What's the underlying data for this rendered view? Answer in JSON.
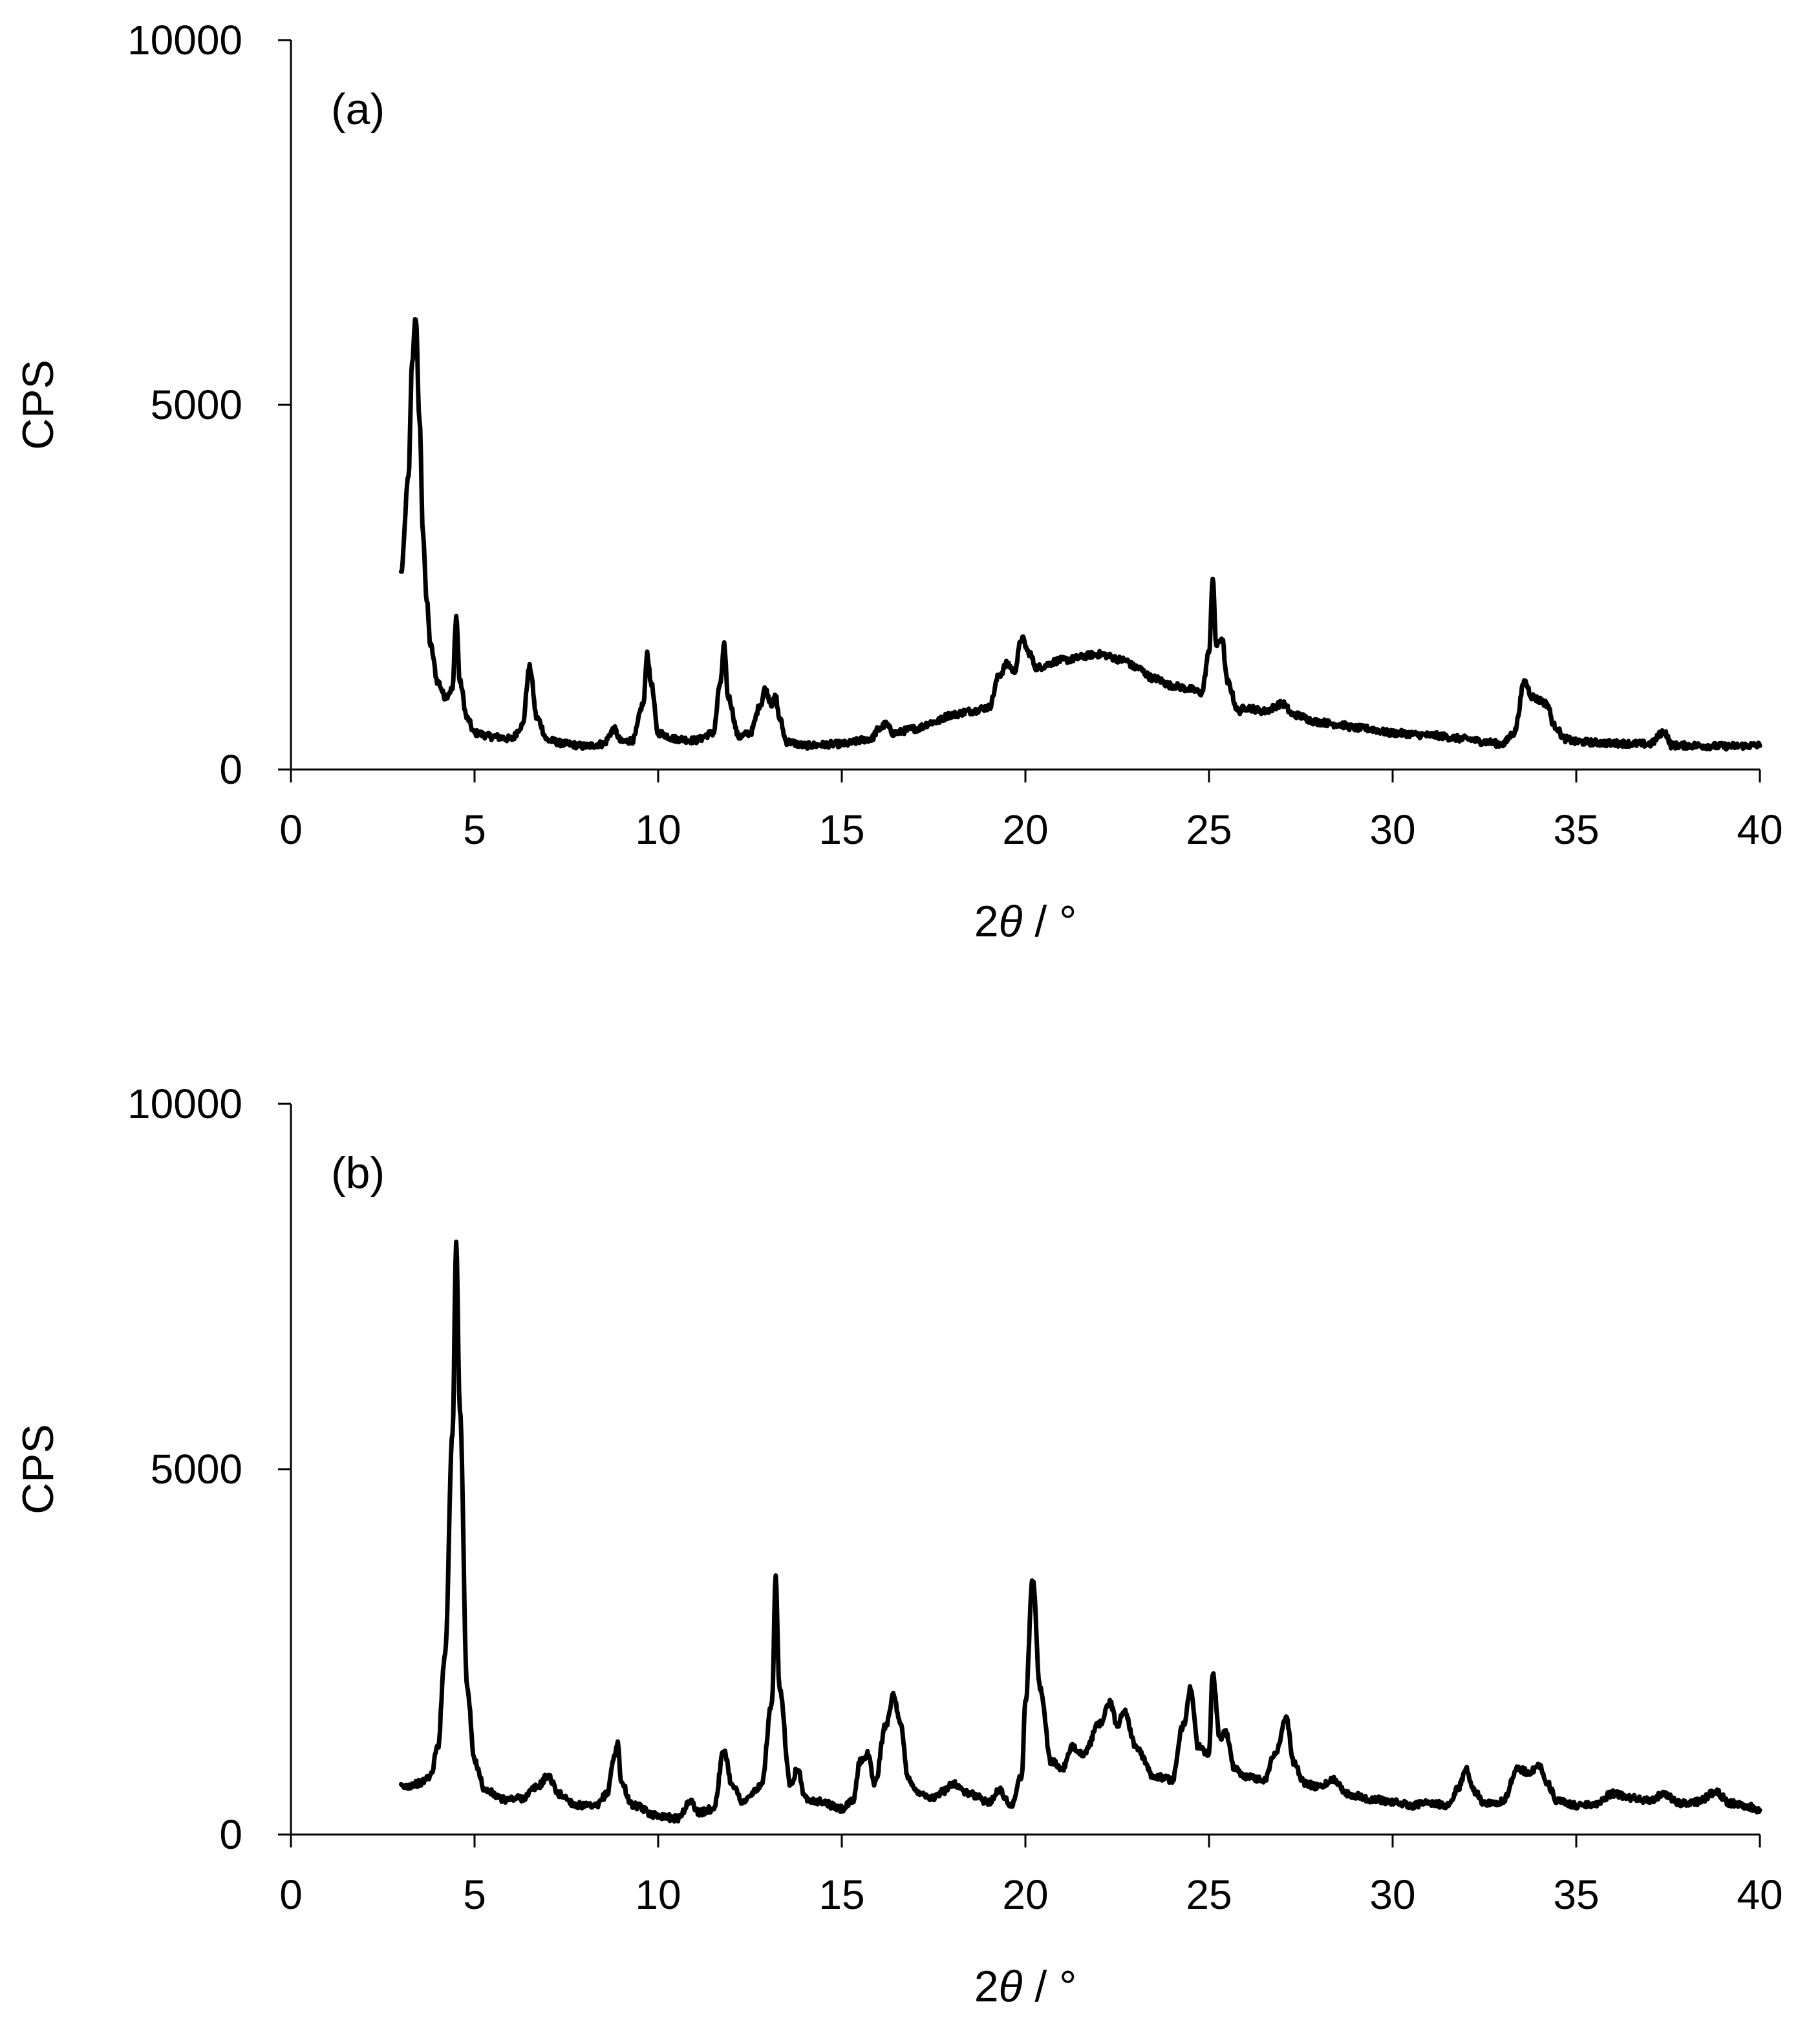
{
  "figure": {
    "line_color": "#000000",
    "background": "#ffffff"
  },
  "chart_data": [
    {
      "type": "line",
      "panel_label": "(a)",
      "xlabel_prefix": "2",
      "xlabel_var": "θ",
      "xlabel_suffix": " / °",
      "ylabel": "CPS",
      "xlim": [
        0,
        40
      ],
      "ylim": [
        0,
        10000
      ],
      "xticks": [
        "0",
        "5",
        "10",
        "15",
        "20",
        "25",
        "30",
        "35",
        "40"
      ],
      "yticks": [
        "0",
        "5000",
        "10000"
      ],
      "grid": false,
      "baseline": [
        [
          3,
          2700
        ],
        [
          3.2,
          4000
        ],
        [
          3.3,
          5600
        ],
        [
          3.4,
          6200
        ],
        [
          3.5,
          4800
        ],
        [
          3.6,
          3200
        ],
        [
          3.7,
          2300
        ],
        [
          3.8,
          1700
        ],
        [
          4.0,
          1200
        ],
        [
          4.2,
          1000
        ],
        [
          4.4,
          1100
        ],
        [
          4.5,
          2100
        ],
        [
          4.6,
          1200
        ],
        [
          4.8,
          700
        ],
        [
          5,
          500
        ],
        [
          5.5,
          450
        ],
        [
          6,
          420
        ],
        [
          6.3,
          600
        ],
        [
          6.5,
          1400
        ],
        [
          6.7,
          700
        ],
        [
          7,
          400
        ],
        [
          7.5,
          350
        ],
        [
          8,
          320
        ],
        [
          8.5,
          350
        ],
        [
          8.8,
          550
        ],
        [
          9,
          380
        ],
        [
          9.3,
          400
        ],
        [
          9.6,
          900
        ],
        [
          9.7,
          1600
        ],
        [
          9.8,
          1200
        ],
        [
          10,
          500
        ],
        [
          10.5,
          420
        ],
        [
          11,
          400
        ],
        [
          11.5,
          500
        ],
        [
          11.7,
          1200
        ],
        [
          11.8,
          1700
        ],
        [
          11.9,
          1000
        ],
        [
          12.2,
          450
        ],
        [
          12.5,
          500
        ],
        [
          12.8,
          900
        ],
        [
          12.9,
          1100
        ],
        [
          13.1,
          900
        ],
        [
          13.2,
          1000
        ],
        [
          13.3,
          700
        ],
        [
          13.5,
          380
        ],
        [
          14,
          330
        ],
        [
          15,
          350
        ],
        [
          15.8,
          420
        ],
        [
          16,
          550
        ],
        [
          16.2,
          620
        ],
        [
          16.4,
          500
        ],
        [
          17,
          560
        ],
        [
          17.5,
          650
        ],
        [
          18,
          750
        ],
        [
          18.5,
          800
        ],
        [
          19,
          850
        ],
        [
          19.3,
          1300
        ],
        [
          19.5,
          1450
        ],
        [
          19.7,
          1350
        ],
        [
          19.9,
          1800
        ],
        [
          20.1,
          1600
        ],
        [
          20.3,
          1400
        ],
        [
          21,
          1500
        ],
        [
          22,
          1580
        ],
        [
          22.7,
          1500
        ],
        [
          23,
          1400
        ],
        [
          23.5,
          1250
        ],
        [
          24,
          1150
        ],
        [
          24.5,
          1100
        ],
        [
          24.8,
          1050
        ],
        [
          25,
          1600
        ],
        [
          25.1,
          2600
        ],
        [
          25.2,
          1700
        ],
        [
          25.35,
          1800
        ],
        [
          25.5,
          1200
        ],
        [
          25.8,
          800
        ],
        [
          26,
          850
        ],
        [
          26.5,
          800
        ],
        [
          27,
          900
        ],
        [
          27.3,
          750
        ],
        [
          28,
          650
        ],
        [
          28.5,
          620
        ],
        [
          29,
          570
        ],
        [
          29.3,
          560
        ],
        [
          30,
          500
        ],
        [
          31,
          470
        ],
        [
          32,
          420
        ],
        [
          32.5,
          380
        ],
        [
          33,
          350
        ],
        [
          33.3,
          500
        ],
        [
          33.6,
          1200
        ],
        [
          33.8,
          1000
        ],
        [
          34,
          950
        ],
        [
          34.2,
          900
        ],
        [
          34.4,
          600
        ],
        [
          34.7,
          420
        ],
        [
          35,
          380
        ],
        [
          36,
          360
        ],
        [
          37,
          350
        ],
        [
          37.4,
          520
        ],
        [
          37.6,
          330
        ],
        [
          38,
          330
        ],
        [
          39,
          320
        ],
        [
          40,
          330
        ]
      ]
    },
    {
      "type": "line",
      "panel_label": "(b)",
      "xlabel_prefix": "2",
      "xlabel_var": "θ",
      "xlabel_suffix": " / °",
      "ylabel": "CPS",
      "xlim": [
        0,
        40
      ],
      "ylim": [
        0,
        10000
      ],
      "xticks": [
        "0",
        "5",
        "10",
        "15",
        "20",
        "25",
        "30",
        "35",
        "40"
      ],
      "yticks": [
        "0",
        "5000",
        "10000"
      ],
      "grid": false,
      "baseline": [
        [
          3,
          650
        ],
        [
          3.5,
          700
        ],
        [
          3.8,
          800
        ],
        [
          4.0,
          1200
        ],
        [
          4.2,
          2500
        ],
        [
          4.4,
          5500
        ],
        [
          4.5,
          8100
        ],
        [
          4.6,
          5800
        ],
        [
          4.8,
          2000
        ],
        [
          5.0,
          1000
        ],
        [
          5.3,
          600
        ],
        [
          5.8,
          480
        ],
        [
          6.3,
          500
        ],
        [
          6.7,
          650
        ],
        [
          7.0,
          800
        ],
        [
          7.3,
          550
        ],
        [
          7.8,
          400
        ],
        [
          8.3,
          380
        ],
        [
          8.6,
          550
        ],
        [
          8.8,
          1050
        ],
        [
          8.9,
          1250
        ],
        [
          9.0,
          700
        ],
        [
          9.3,
          400
        ],
        [
          10,
          260
        ],
        [
          10.5,
          220
        ],
        [
          10.9,
          450
        ],
        [
          11.1,
          300
        ],
        [
          11.5,
          350
        ],
        [
          11.8,
          1150
        ],
        [
          12.0,
          700
        ],
        [
          12.3,
          450
        ],
        [
          12.8,
          650
        ],
        [
          13.1,
          1800
        ],
        [
          13.2,
          3500
        ],
        [
          13.3,
          2000
        ],
        [
          13.6,
          700
        ],
        [
          13.8,
          900
        ],
        [
          14.0,
          500
        ],
        [
          14.4,
          450
        ],
        [
          15.0,
          350
        ],
        [
          15.3,
          450
        ],
        [
          15.5,
          1000
        ],
        [
          15.7,
          1100
        ],
        [
          15.9,
          700
        ],
        [
          16.2,
          1500
        ],
        [
          16.4,
          1900
        ],
        [
          16.6,
          1500
        ],
        [
          16.8,
          800
        ],
        [
          17.0,
          600
        ],
        [
          17.5,
          500
        ],
        [
          17.8,
          600
        ],
        [
          18.0,
          700
        ],
        [
          18.5,
          550
        ],
        [
          19.0,
          450
        ],
        [
          19.3,
          600
        ],
        [
          19.6,
          400
        ],
        [
          19.9,
          800
        ],
        [
          20.0,
          1800
        ],
        [
          20.2,
          3500
        ],
        [
          20.4,
          2000
        ],
        [
          20.7,
          1000
        ],
        [
          21.0,
          900
        ],
        [
          21.3,
          1200
        ],
        [
          21.6,
          1100
        ],
        [
          22.0,
          1500
        ],
        [
          22.3,
          1800
        ],
        [
          22.5,
          1500
        ],
        [
          22.7,
          1700
        ],
        [
          23.0,
          1200
        ],
        [
          23.5,
          800
        ],
        [
          24.0,
          750
        ],
        [
          24.3,
          1500
        ],
        [
          24.5,
          2000
        ],
        [
          24.7,
          1200
        ],
        [
          25.0,
          1100
        ],
        [
          25.1,
          2200
        ],
        [
          25.3,
          1300
        ],
        [
          25.45,
          1400
        ],
        [
          25.7,
          900
        ],
        [
          26.0,
          800
        ],
        [
          26.5,
          750
        ],
        [
          26.8,
          1100
        ],
        [
          27.1,
          1600
        ],
        [
          27.3,
          1000
        ],
        [
          27.6,
          700
        ],
        [
          28.0,
          650
        ],
        [
          28.4,
          750
        ],
        [
          28.8,
          550
        ],
        [
          29.5,
          480
        ],
        [
          30,
          450
        ],
        [
          30.5,
          400
        ],
        [
          31.0,
          430
        ],
        [
          31.5,
          400
        ],
        [
          31.8,
          650
        ],
        [
          32.0,
          900
        ],
        [
          32.2,
          600
        ],
        [
          32.5,
          430
        ],
        [
          33.0,
          450
        ],
        [
          33.4,
          900
        ],
        [
          33.7,
          850
        ],
        [
          34.0,
          950
        ],
        [
          34.2,
          700
        ],
        [
          34.5,
          450
        ],
        [
          35,
          400
        ],
        [
          35.5,
          420
        ],
        [
          36,
          560
        ],
        [
          36.5,
          500
        ],
        [
          37,
          460
        ],
        [
          37.4,
          560
        ],
        [
          37.8,
          430
        ],
        [
          38.3,
          450
        ],
        [
          38.8,
          580
        ],
        [
          39.2,
          430
        ],
        [
          39.7,
          380
        ],
        [
          40,
          330
        ]
      ]
    }
  ]
}
